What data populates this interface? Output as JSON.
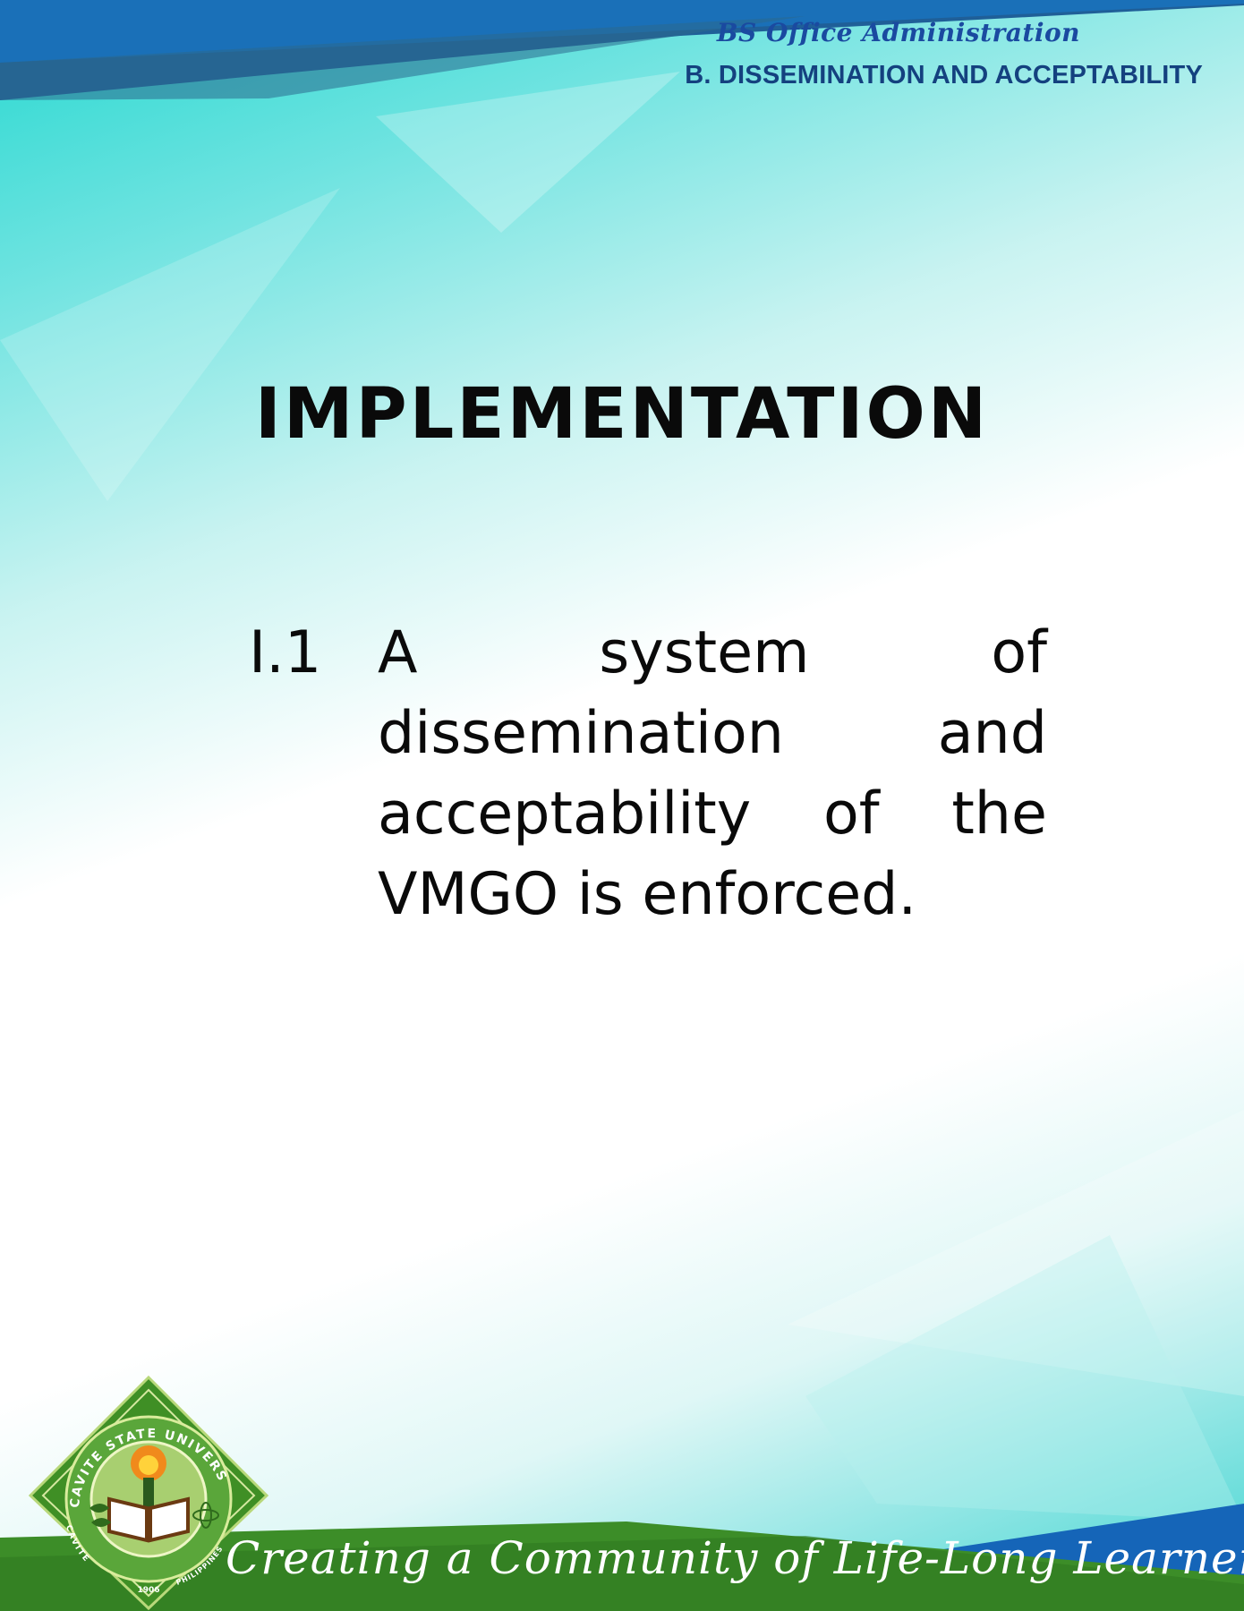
{
  "header": {
    "program": "BS Office Administration",
    "section": "B. DISSEMINATION AND ACCEPTABILITY"
  },
  "main": {
    "title": "IMPLEMENTATION",
    "item": {
      "number": "I.1",
      "first_line": "A system of",
      "rest": "dissemination and acceptability of the VMGO is enforced."
    }
  },
  "footer": {
    "slogan": "Creating a Community of Life-Long Learners",
    "seal": {
      "top_text": "CAVITE STATE UNIVERSITY",
      "bottom_left": "CAVITE",
      "bottom_right": "PHILIPPINES",
      "year": "1906"
    }
  },
  "colors": {
    "header_blue": "#1565b0",
    "footer_green": "#3f8f2a",
    "footer_blue": "#1463b4",
    "seal_green": "#4a9a2e",
    "text": "#0a0a0a"
  }
}
